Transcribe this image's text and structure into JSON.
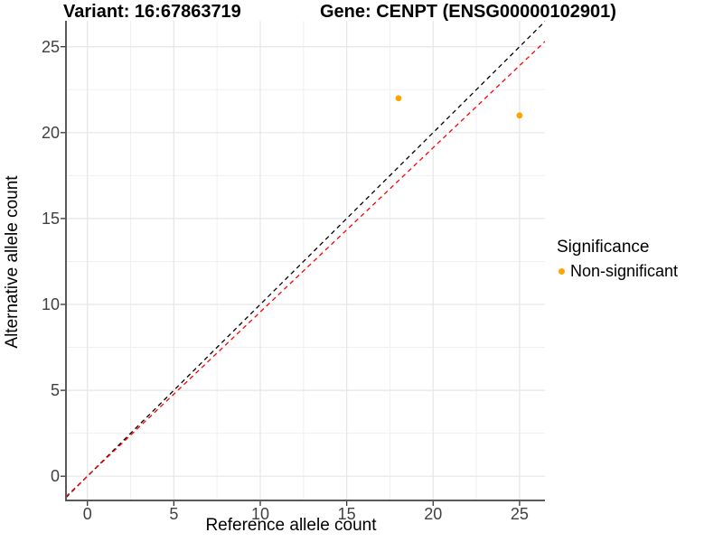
{
  "chart_data": {
    "type": "scatter",
    "variant_title": "Variant: 16:67863719",
    "gene_title": "Gene: CENPT (ENSG00000102901)",
    "xlabel": "Reference allele count",
    "ylabel": "Alternative allele count",
    "xlim": [
      -1.24,
      26.47
    ],
    "ylim": [
      -1.41,
      26.51
    ],
    "x_ticks": [
      0,
      5,
      10,
      15,
      20,
      25
    ],
    "y_ticks": [
      0,
      5,
      10,
      15,
      20,
      25
    ],
    "x_minor_ticks": [
      2.5,
      7.5,
      12.5,
      17.5,
      22.5
    ],
    "y_minor_ticks": [
      2.5,
      7.5,
      12.5,
      17.5,
      22.5
    ],
    "grid": true,
    "legend_position": "right",
    "series": [
      {
        "name": "Non-significant",
        "color": "#FFA500",
        "points": [
          [
            18,
            22
          ],
          [
            25,
            21
          ]
        ]
      }
    ],
    "lines": [
      {
        "name": "identity",
        "slope": 1.0,
        "intercept": 0,
        "color": "#000000",
        "dash": "dashed"
      },
      {
        "name": "expected-ratio",
        "slope": 0.956,
        "intercept": 0,
        "color": "#FF0000",
        "dash": "dashed"
      }
    ],
    "legend": {
      "title": "Significance",
      "items": [
        {
          "label": "Non-significant",
          "color": "#FFA500"
        }
      ]
    },
    "colors": {
      "grid_major": "#e6e6e6",
      "grid_minor": "#f0f0f0",
      "axis_line": "#595959",
      "tick_mark": "#333333",
      "tick_label": "#404040",
      "point": "#FFA500"
    }
  }
}
